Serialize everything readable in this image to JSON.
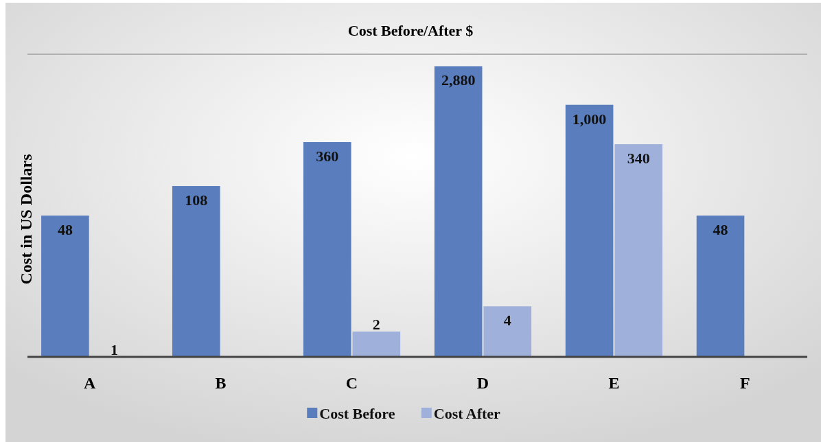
{
  "chart_data": {
    "type": "bar",
    "title": "Cost Before/After $",
    "ylabel": "Cost in US Dollars",
    "log": true,
    "data_labels": true,
    "ylim": [
      1,
      4000
    ],
    "tick_labels": "x",
    "legend": "bottom",
    "categories": [
      "A",
      "B",
      "C",
      "D",
      "E",
      "F"
    ],
    "series": [
      {
        "name": "Cost Before",
        "color": "#5a7dbd",
        "values": [
          48,
          108,
          360,
          2880,
          1000,
          48
        ],
        "value_labels": [
          "48",
          "108",
          "360",
          "2,880",
          "1,000",
          "48"
        ]
      },
      {
        "name": "Cost After",
        "color": "#9fb0da",
        "values": [
          1,
          null,
          2,
          4,
          340,
          null
        ],
        "value_labels": [
          "1",
          null,
          "2",
          "4",
          "340",
          null
        ]
      }
    ]
  }
}
